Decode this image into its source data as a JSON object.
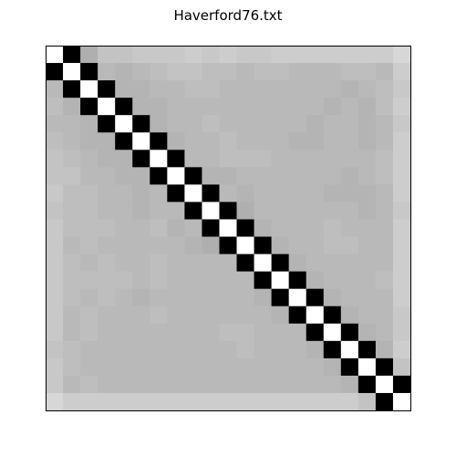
{
  "chart_data": {
    "type": "heatmap",
    "title": "Haverford76.txt",
    "xlabel": "",
    "ylabel": "",
    "rows": 21,
    "cols": 21,
    "axis_ticks": false,
    "grid": false,
    "colormap": "grayscale",
    "diagonal_bands": [
      {
        "offset": -1,
        "color": "#000000"
      },
      {
        "offset": 0,
        "color": "#ffffff"
      },
      {
        "offset": 1,
        "color": "#000000"
      }
    ],
    "cells": [
      [
        255,
        0,
        175,
        195,
        195,
        200,
        200,
        200,
        205,
        200,
        205,
        200,
        200,
        205,
        205,
        205,
        205,
        205,
        205,
        205,
        215
      ],
      [
        0,
        255,
        0,
        185,
        180,
        185,
        190,
        195,
        195,
        190,
        190,
        185,
        190,
        190,
        185,
        185,
        185,
        190,
        190,
        185,
        205
      ],
      [
        185,
        0,
        255,
        0,
        180,
        180,
        185,
        185,
        190,
        190,
        185,
        185,
        185,
        185,
        185,
        185,
        185,
        180,
        185,
        190,
        200
      ],
      [
        190,
        180,
        0,
        255,
        0,
        180,
        180,
        185,
        185,
        185,
        185,
        185,
        185,
        185,
        185,
        185,
        180,
        185,
        180,
        190,
        205
      ],
      [
        185,
        185,
        180,
        0,
        255,
        0,
        180,
        185,
        185,
        190,
        185,
        185,
        185,
        185,
        185,
        180,
        185,
        185,
        180,
        185,
        200
      ],
      [
        190,
        185,
        180,
        180,
        0,
        255,
        0,
        180,
        185,
        185,
        190,
        185,
        185,
        185,
        180,
        180,
        185,
        185,
        180,
        185,
        205
      ],
      [
        195,
        190,
        185,
        180,
        180,
        0,
        255,
        0,
        185,
        185,
        190,
        190,
        190,
        185,
        185,
        185,
        185,
        185,
        185,
        190,
        205
      ],
      [
        195,
        195,
        185,
        185,
        180,
        180,
        0,
        255,
        0,
        180,
        180,
        185,
        185,
        185,
        185,
        185,
        185,
        180,
        185,
        190,
        205
      ],
      [
        200,
        190,
        190,
        185,
        185,
        180,
        185,
        0,
        255,
        0,
        185,
        180,
        185,
        185,
        185,
        185,
        180,
        180,
        180,
        185,
        205
      ],
      [
        195,
        190,
        190,
        185,
        185,
        180,
        185,
        185,
        0,
        255,
        0,
        175,
        185,
        185,
        185,
        185,
        185,
        185,
        180,
        185,
        200
      ],
      [
        200,
        190,
        190,
        190,
        185,
        185,
        190,
        180,
        185,
        0,
        255,
        0,
        180,
        185,
        185,
        185,
        190,
        185,
        185,
        185,
        205
      ],
      [
        200,
        185,
        190,
        185,
        185,
        185,
        185,
        185,
        180,
        175,
        0,
        255,
        0,
        180,
        185,
        185,
        190,
        190,
        185,
        185,
        205
      ],
      [
        200,
        190,
        185,
        190,
        185,
        185,
        190,
        185,
        185,
        185,
        185,
        0,
        255,
        0,
        180,
        185,
        185,
        185,
        185,
        185,
        205
      ],
      [
        200,
        190,
        190,
        190,
        190,
        185,
        190,
        185,
        185,
        185,
        185,
        185,
        0,
        255,
        0,
        180,
        185,
        185,
        185,
        190,
        205
      ],
      [
        200,
        190,
        185,
        190,
        185,
        180,
        185,
        185,
        185,
        185,
        185,
        185,
        180,
        0,
        255,
        0,
        180,
        185,
        185,
        185,
        205
      ],
      [
        200,
        185,
        190,
        185,
        185,
        185,
        190,
        185,
        185,
        185,
        185,
        185,
        185,
        180,
        0,
        255,
        0,
        180,
        185,
        185,
        200
      ],
      [
        200,
        185,
        190,
        185,
        185,
        185,
        185,
        185,
        185,
        185,
        190,
        190,
        185,
        185,
        185,
        0,
        255,
        0,
        180,
        185,
        200
      ],
      [
        195,
        190,
        185,
        185,
        185,
        185,
        185,
        185,
        185,
        185,
        185,
        190,
        185,
        185,
        185,
        180,
        0,
        255,
        0,
        180,
        205
      ],
      [
        200,
        190,
        185,
        185,
        185,
        185,
        185,
        185,
        185,
        185,
        185,
        185,
        185,
        185,
        185,
        185,
        180,
        0,
        255,
        0,
        195
      ],
      [
        200,
        185,
        190,
        185,
        185,
        185,
        185,
        185,
        185,
        185,
        185,
        185,
        185,
        185,
        185,
        185,
        185,
        180,
        0,
        255,
        0
      ],
      [
        215,
        205,
        205,
        205,
        205,
        205,
        205,
        205,
        205,
        205,
        205,
        205,
        205,
        205,
        205,
        205,
        205,
        205,
        195,
        0,
        255
      ]
    ]
  }
}
